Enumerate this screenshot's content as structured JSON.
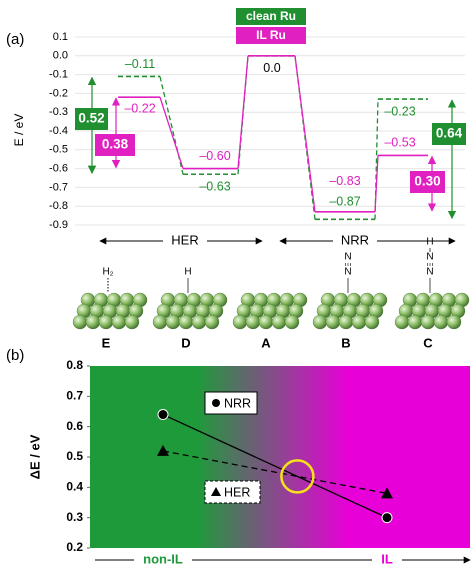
{
  "chart_data": [
    {
      "type": "energy-diagram",
      "panel": "(a)",
      "ylabel": "E / eV",
      "categories": [
        "E",
        "D",
        "A",
        "B",
        "C"
      ],
      "series": [
        {
          "name": "clean Ru",
          "color": "#1f8f2f",
          "linestyle": "dashed",
          "values": [
            -0.11,
            -0.63,
            0.0,
            -0.87,
            -0.23
          ],
          "value_labels": [
            "–0.11",
            "–0.63",
            "0.0",
            "–0.87",
            "–0.23"
          ]
        },
        {
          "name": "IL Ru",
          "color": "#e020c0",
          "linestyle": "solid",
          "values": [
            -0.22,
            -0.6,
            0.0,
            -0.83,
            -0.53
          ],
          "value_labels": [
            "–0.22",
            "–0.60",
            null,
            "–0.83",
            "–0.53"
          ]
        }
      ],
      "ylim": [
        -0.9,
        0.1
      ],
      "yticks": [
        -0.9,
        -0.8,
        -0.7,
        -0.6,
        -0.5,
        -0.4,
        -0.3,
        -0.2,
        -0.1,
        {
          "value": 0,
          "label": "0.0"
        },
        0.1
      ],
      "grid": true,
      "annotations": [
        {
          "text": "0.52",
          "series": 0
        },
        {
          "text": "0.38",
          "series": 1
        },
        {
          "text": "0.64",
          "series": 0
        },
        {
          "text": "0.30",
          "series": 1
        }
      ],
      "reactions": [
        "HER",
        "NRR"
      ],
      "adsorbates": [
        [
          "H₂"
        ],
        [
          "H"
        ],
        [],
        [
          "N",
          "N"
        ],
        [
          "H",
          "N",
          "N"
        ]
      ]
    },
    {
      "type": "line",
      "panel": "(b)",
      "ylabel": "ΔE / eV",
      "categories": [
        "non-IL",
        "IL"
      ],
      "series": [
        {
          "name": "NRR",
          "color": "#000000",
          "marker": "circle",
          "linestyle": "solid",
          "values": [
            0.64,
            0.3
          ]
        },
        {
          "name": "HER",
          "color": "#000000",
          "marker": "triangle",
          "linestyle": "dashed",
          "values": [
            0.52,
            0.38
          ]
        }
      ],
      "ylim": [
        0.2,
        0.8
      ],
      "yticks": [
        0.2,
        0.3,
        0.4,
        0.5,
        0.6,
        0.7,
        0.8
      ],
      "background": [
        "#1f9a3a",
        "#e800d8"
      ]
    }
  ]
}
